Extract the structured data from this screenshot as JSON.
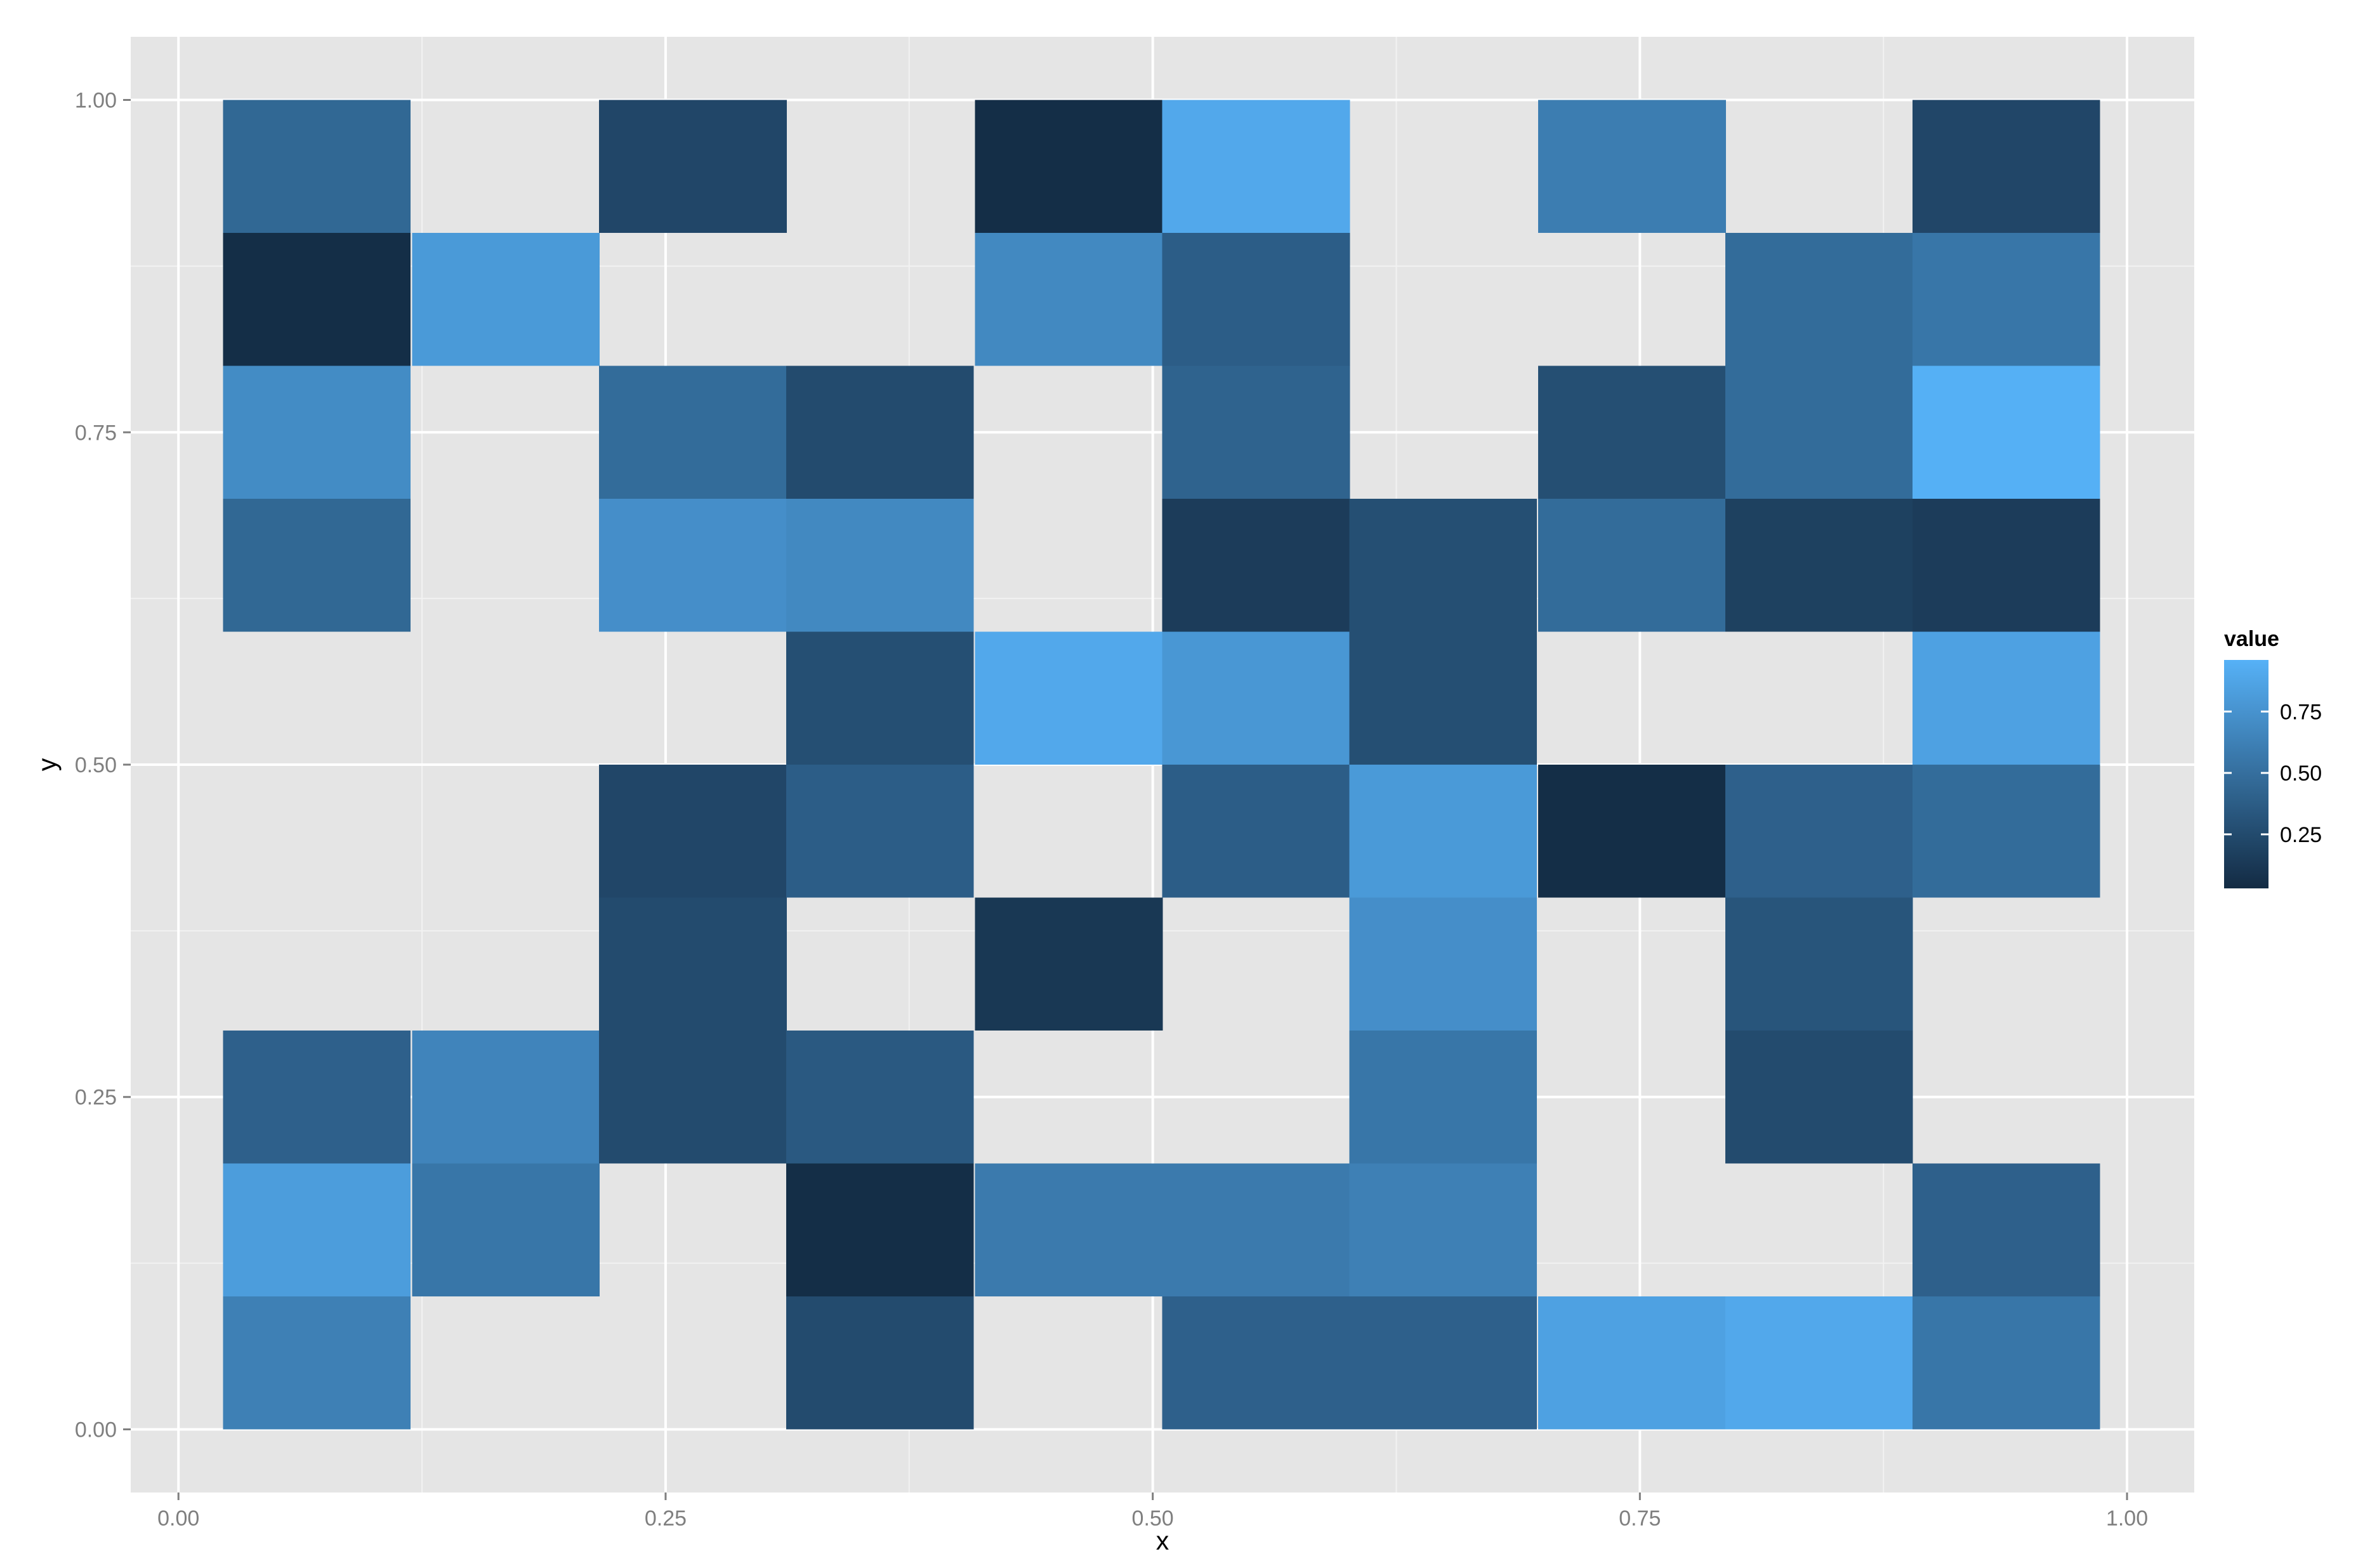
{
  "chart_data": {
    "type": "heatmap",
    "title": "",
    "xlabel": "x",
    "ylabel": "y",
    "xlim": [
      -0.0245,
      1.0345
    ],
    "ylim": [
      -0.0475,
      1.0475
    ],
    "x_ticks": [
      0.0,
      0.25,
      0.5,
      0.75,
      1.0
    ],
    "x_tick_labels": [
      "0.00",
      "0.25",
      "0.50",
      "0.75",
      "1.00"
    ],
    "y_ticks": [
      0.0,
      0.25,
      0.5,
      0.75,
      1.0
    ],
    "y_tick_labels": [
      "0.00",
      "0.25",
      "0.50",
      "0.75",
      "1.00"
    ],
    "x": [
      0.071,
      0.168,
      0.264,
      0.36,
      0.457,
      0.553,
      0.649,
      0.746,
      0.842,
      0.938
    ],
    "y": [
      0.05,
      0.15,
      0.25,
      0.35,
      0.45,
      0.55,
      0.65,
      0.75,
      0.85,
      0.95
    ],
    "tile_width": 0.0963,
    "tile_height": 0.1,
    "values": [
      [
        0.62,
        null,
        null,
        0.25,
        null,
        0.4,
        0.4,
        0.85,
        0.9,
        0.55
      ],
      [
        0.82,
        0.55,
        null,
        0.05,
        0.58,
        0.58,
        0.62,
        null,
        null,
        0.4
      ],
      [
        0.4,
        0.65,
        0.25,
        0.35,
        null,
        null,
        0.55,
        null,
        0.25,
        null
      ],
      [
        null,
        null,
        0.25,
        null,
        0.12,
        null,
        0.72,
        null,
        0.32,
        null
      ],
      [
        null,
        null,
        0.22,
        0.38,
        null,
        0.38,
        0.8,
        0.05,
        0.4,
        0.48
      ],
      [
        null,
        null,
        null,
        0.28,
        0.9,
        0.78,
        0.28,
        null,
        null,
        0.85
      ],
      [
        0.45,
        null,
        0.72,
        0.68,
        null,
        0.15,
        0.28,
        0.48,
        0.18,
        0.15
      ],
      [
        0.7,
        null,
        0.48,
        0.25,
        null,
        0.42,
        null,
        0.28,
        0.48,
        0.95
      ],
      [
        0.05,
        0.8,
        null,
        null,
        0.68,
        0.38,
        null,
        null,
        0.48,
        0.55
      ],
      [
        0.45,
        null,
        0.22,
        null,
        0.05,
        0.9,
        null,
        0.6,
        null,
        0.22
      ]
    ],
    "value_range": [
      0.03,
      0.96
    ],
    "colors": {
      "low": "#132B43",
      "high": "#56B1F7",
      "panel_background": "#E5E5E5",
      "grid_major": "#FFFFFF",
      "grid_minor": "#F2F2F2"
    },
    "legend": {
      "title": "value",
      "placement": "right",
      "ticks": [
        0.25,
        0.5,
        0.75
      ],
      "tick_labels": [
        "0.25",
        "0.50",
        "0.75"
      ]
    },
    "grid": true
  }
}
